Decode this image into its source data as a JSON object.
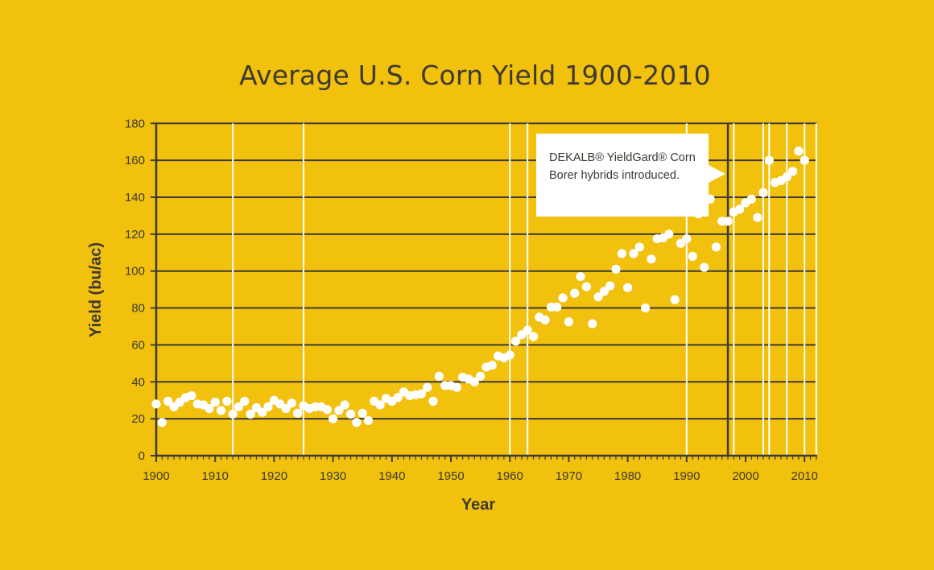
{
  "chart_data": {
    "type": "scatter",
    "title": "Average U.S. Corn Yield 1900-2010",
    "xlabel": "Year",
    "ylabel": "Yield (bu/ac)",
    "xlim": [
      1900,
      2012
    ],
    "ylim": [
      0,
      180
    ],
    "x_ticks": [
      1900,
      1910,
      1920,
      1930,
      1940,
      1950,
      1960,
      1970,
      1980,
      1990,
      2000,
      2010
    ],
    "y_ticks": [
      0,
      20,
      40,
      60,
      80,
      100,
      120,
      140,
      160,
      180
    ],
    "grid": "horizontal lines at each y tick",
    "highlight_years": [
      1913,
      1925,
      1960,
      1963,
      1990,
      1998,
      2003,
      2004,
      2007,
      2010,
      2012
    ],
    "marked_year": 1997,
    "series": [
      {
        "x": [
          1900,
          1901,
          1902,
          1903,
          1904,
          1905,
          1906,
          1907,
          1908,
          1909,
          1910,
          1911,
          1912,
          1913,
          1914,
          1915,
          1916,
          1917,
          1918,
          1919,
          1920,
          1921,
          1922,
          1923,
          1924,
          1925,
          1926,
          1927,
          1928,
          1929,
          1930,
          1931,
          1932,
          1933,
          1934,
          1935,
          1936,
          1937,
          1938,
          1939,
          1940,
          1941,
          1942,
          1943,
          1944,
          1945,
          1946,
          1947,
          1948,
          1949,
          1950,
          1951,
          1952,
          1953,
          1954,
          1955,
          1956,
          1957,
          1958,
          1959,
          1960,
          1961,
          1962,
          1963,
          1964,
          1965,
          1966,
          1967,
          1968,
          1969,
          1970,
          1971,
          1972,
          1973,
          1974,
          1975,
          1976,
          1977,
          1978,
          1979,
          1980,
          1981,
          1982,
          1983,
          1984,
          1985,
          1986,
          1987,
          1988,
          1989,
          1990,
          1991,
          1992,
          1993,
          1994,
          1995,
          1996,
          1997,
          1998,
          1999,
          2000,
          2001,
          2002,
          2003,
          2004,
          2005,
          2006,
          2007,
          2008,
          2009,
          2010
        ],
        "y": [
          28,
          18,
          29.5,
          26.5,
          29,
          31.5,
          32.5,
          28,
          27.5,
          25.5,
          29,
          24.5,
          29.5,
          22.5,
          26.5,
          29.5,
          22.5,
          26,
          23.5,
          26.5,
          30,
          28,
          25.5,
          28.5,
          23,
          27,
          25.5,
          26.5,
          26.5,
          25,
          20,
          24.5,
          27.5,
          22.5,
          18,
          23,
          19,
          29.5,
          27.5,
          31,
          29.5,
          31.5,
          34.5,
          32.5,
          33,
          33.5,
          37,
          29.5,
          43,
          38,
          38,
          37,
          42.5,
          41.5,
          40,
          43,
          48,
          49,
          54,
          53,
          54.5,
          62,
          65.5,
          68,
          64.5,
          75,
          73.5,
          80.5,
          80.5,
          85.5,
          72.5,
          88,
          97,
          91.5,
          71.5,
          86,
          89,
          92,
          101,
          109.5,
          91,
          109.5,
          113,
          80,
          106.5,
          117.5,
          118,
          120,
          84.5,
          115,
          117.5,
          108,
          131,
          102,
          139,
          113,
          127,
          127,
          132,
          133.5,
          137,
          139,
          129,
          142.5,
          160,
          148,
          149,
          151,
          154,
          165,
          160
        ]
      }
    ],
    "annotation": "DEKALB® YieldGard® Corn Borer hybrids introduced."
  }
}
